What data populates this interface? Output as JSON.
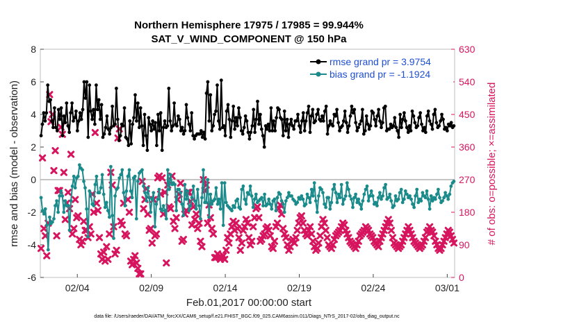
{
  "chart_data": {
    "type": "line",
    "title": "Northern Hemisphere 17975 / 17985 = 99.944%",
    "subtitle": "SAT_V_WIND_COMPONENT @ 150 hPa",
    "xlabel": "Feb.01,2017 00:00:00 start",
    "ylabel": "rmse and bias (model - observation)",
    "y2label": "# of obs: o=possible; ×=assimilated",
    "footnote": "data file: /Users/raeder/DAI/ATM_forcXX/CAM6_setup/f.e21.FHIST_BGC.f09_025.CAM6assim.011/Diags_NTrS_2017-02/obs_diag_output.nc",
    "x_tick_labels": [
      "02/04",
      "02/09",
      "02/14",
      "02/19",
      "02/24",
      "03/01"
    ],
    "x_tick_values": [
      4,
      9,
      14,
      19,
      24,
      29
    ],
    "x_range": [
      1.5,
      29.5
    ],
    "y_ticks": [
      "-6",
      "-4",
      "-2",
      "0",
      "2",
      "4",
      "6",
      "8"
    ],
    "y_range": [
      -6,
      8
    ],
    "y2_ticks": [
      "0",
      "90",
      "180",
      "270",
      "360",
      "450",
      "540",
      "630"
    ],
    "y2_range": [
      0,
      630
    ],
    "zero_line": 0,
    "colors": {
      "rmse": "#000000",
      "bias": "#1a8a8a",
      "obs": "#d6155e",
      "legend_text": "#1f4fd0"
    },
    "series": [
      {
        "name": "rmse grand pr = 3.9754",
        "values": [
          2.7,
          3.4,
          4.1,
          3.6,
          4.1,
          5.8,
          4.8,
          4.9,
          3.6,
          3.2,
          4.4,
          3.2,
          3.0,
          4.3,
          3.7,
          4.4,
          2.7,
          3.9,
          3.5,
          4.7,
          3.3,
          2.9,
          4.1,
          4.7,
          3.6,
          3.8,
          4.2,
          3.0,
          3.6,
          4.1,
          3.7,
          4.3,
          6.0,
          5.0,
          6.0,
          2.6,
          5.8,
          4.2,
          3.7,
          4.3,
          3.4,
          5.8,
          4.3,
          4.9,
          3.7,
          4.6,
          2.6,
          2.8,
          3.2,
          3.9,
          3.1,
          2.8,
          3.2,
          4.5,
          3.3,
          3.4,
          5.6,
          3.7,
          2.4,
          2.7,
          3.4,
          3.3,
          4.4,
          2.6,
          2.5,
          2.1,
          3.6,
          2.2,
          3.4,
          3.8,
          5.2,
          3.6,
          4.7,
          3.2,
          4.4,
          3.3,
          2.1,
          4.0,
          2.7,
          1.8,
          3.8,
          3.4,
          3.0,
          3.6,
          3.1,
          3.5,
          2.1,
          4.0,
          3.0,
          4.1,
          1.8,
          3.2,
          3.6,
          3.2,
          3.3,
          5.6,
          3.6,
          3.0,
          3.3,
          4.7,
          3.4,
          3.3,
          3.9,
          3.7,
          3.0,
          3.2,
          2.8,
          3.0,
          4.6,
          3.8,
          3.4,
          3.0,
          4.1,
          2.7,
          2.5,
          2.7,
          2.8,
          2.8,
          2.8,
          3.0,
          2.6,
          2.9,
          2.5,
          5.3,
          6.0,
          3.6,
          5.2,
          3.0,
          3.3,
          4.0,
          4.2,
          5.8,
          3.6,
          3.1,
          6.1,
          3.2,
          3.3,
          2.7,
          4.2,
          4.6,
          3.7,
          2.6,
          3.6,
          4.5,
          3.1,
          3.8,
          3.3,
          4.4,
          3.8,
          3.0,
          2.8,
          3.2,
          3.9,
          3.6,
          2.9,
          2.5,
          2.9,
          3.3,
          4.3,
          2.9,
          3.7,
          4.8,
          3.4,
          4.0,
          3.1,
          2.7,
          2.0,
          3.3,
          3.1,
          3.4,
          3.0,
          4.4,
          3.0,
          3.6,
          3.0,
          3.8,
          4.4,
          4.3,
          3.8,
          3.7,
          2.7,
          4.2,
          3.0,
          3.7,
          2.6,
          3.4,
          3.7,
          3.3,
          3.1,
          3.6,
          3.6,
          4.0,
          3.3,
          2.9,
          3.6,
          4.1,
          3.0,
          3.6,
          4.1,
          4.5,
          2.9,
          3.9,
          4.3,
          3.5,
          3.6,
          4.0,
          4.3,
          3.7,
          3.6,
          3.9,
          3.6,
          4.2,
          4.5,
          2.8,
          3.3,
          3.6,
          3.4,
          3.3,
          4.0,
          3.9,
          4.3,
          3.5,
          3.0,
          3.2,
          3.3,
          3.6,
          4.2,
          3.5,
          2.9,
          3.3,
          3.9,
          4.5,
          4.1,
          4.3,
          3.5,
          3.0,
          3.2,
          3.4,
          3.6,
          4.3,
          2.8,
          3.0,
          3.9,
          3.4,
          3.1,
          3.3,
          4.2,
          4.1,
          3.7,
          3.3,
          3.9,
          4.3,
          3.6,
          3.2,
          3.5,
          4.4,
          4.5,
          3.0,
          3.1,
          3.1,
          3.4,
          3.2,
          3.3,
          3.8,
          3.2,
          3.0,
          2.6,
          4.0,
          3.2,
          3.7,
          4.1,
          3.6,
          3.2,
          2.9,
          3.3,
          3.0,
          4.2,
          3.9,
          3.5,
          3.2,
          3.3,
          3.8,
          4.1,
          3.4,
          3.0,
          3.2,
          2.9,
          3.9,
          4.2,
          3.6,
          3.4,
          3.1,
          4.0,
          4.3,
          3.5,
          3.2,
          3.3,
          3.6,
          4.0,
          3.7,
          3.1,
          3.2,
          3.0,
          3.4,
          3.3,
          3.5,
          3.2,
          3.3
        ]
      },
      {
        "name": "bias grand pr = -1.1924",
        "values": [
          -1.1,
          -1.9,
          -2.1,
          -1.8,
          -2.8,
          -4.3,
          -2.3,
          -2.7,
          -2.6,
          -2.4,
          -1.6,
          -1.3,
          -2.0,
          -1.0,
          -0.7,
          -1.0,
          -2.0,
          -1.3,
          -1.6,
          -1.6,
          -3.1,
          -1.3,
          -0.4,
          0.2,
          -0.5,
          0.1,
          0.2,
          0.9,
          0.7,
          0.6,
          -0.1,
          -0.5,
          -1.8,
          -3.5,
          -0.7,
          -0.9,
          -1.5,
          -1.6,
          -0.3,
          0.2,
          -0.8,
          -0.8,
          -0.5,
          0.3,
          -0.9,
          -1.7,
          -1.4,
          -1.9,
          -2.3,
          0.8,
          -2.2,
          -3.6,
          -1.0,
          -0.6,
          -0.5,
          0.1,
          0.3,
          0.6,
          -0.8,
          -1.6,
          -0.7,
          0.2,
          0.6,
          -0.7,
          -1.1,
          0.1,
          0.2,
          -2.4,
          -0.1,
          0.4,
          0.5,
          0.6,
          -0.4,
          -0.8,
          -1.3,
          -0.5,
          -1.1,
          -2.0,
          -1.2,
          -0.8,
          -2.9,
          -1.5,
          -1.2,
          -0.6,
          -1.8,
          -1.9,
          -1.6,
          -1.9,
          -2.4,
          0.6,
          -0.6,
          0.3,
          -0.3,
          -0.2,
          -0.3,
          -1.9,
          -0.6,
          -0.6,
          -0.8,
          -1.5,
          -2.2,
          -0.3,
          -1.2,
          -0.7,
          -1.9,
          -1.6,
          -1.1,
          -0.4,
          -1.3,
          -1.8,
          -0.6,
          -1.6,
          -2.4,
          -1.1,
          0.6,
          -1.4,
          -1.4,
          0.0,
          -2.3,
          -0.9,
          -1.5,
          -1.3,
          -1.2,
          -0.5,
          -1.5,
          -1.2,
          -1.8,
          -0.2,
          -2.8,
          -0.2,
          -1.4,
          -1.6,
          -1.7,
          -1.8,
          -1.9,
          -1.6,
          -1.7,
          -1.3,
          -1.2,
          -1.7,
          -1.8,
          -0.6,
          -0.4,
          -1.2,
          -1.5,
          -0.8,
          -0.9,
          -0.4,
          -1.0,
          -1.7,
          -1.2,
          -0.9,
          -1.4,
          -1.3,
          -1.2,
          -1.1,
          -1.6,
          -0.9,
          -1.6,
          -1.5,
          -1.2,
          -1.5,
          -1.8,
          -1.3,
          -1.2,
          -1.9,
          -1.1,
          -0.8,
          -0.9,
          -1.3,
          -1.5,
          -2.0,
          -1.3,
          -1.1,
          -0.8,
          -1.0,
          -1.0,
          -1.2,
          -1.3,
          -1.5,
          -1.4,
          -1.1,
          -1.2,
          -1.0,
          -1.2,
          -1.6,
          -1.5,
          -0.9,
          -1.1,
          -1.4,
          -0.6,
          -1.0,
          -0.2,
          -1.3,
          -2.0,
          -1.0,
          -0.5,
          -0.6,
          -0.8,
          -1.5,
          -1.7,
          -1.1,
          -1.1,
          -1.8,
          -1.4,
          -0.6,
          -0.3,
          -0.8,
          -1.4,
          -0.9,
          -1.1,
          -0.3,
          -1.5,
          -1.2,
          -1.0,
          -0.2,
          -0.6,
          -1.0,
          -1.2,
          -1.7,
          -1.1,
          -0.9,
          -1.4,
          -1.2,
          -1.5,
          -1.8,
          -1.3,
          -0.9,
          -0.6,
          -0.4,
          -1.3,
          -1.0,
          -0.7,
          -1.0,
          -1.5,
          -1.4,
          -1.6,
          -1.1,
          -0.8,
          -1.2,
          -1.0,
          -0.5,
          -0.3,
          -1.2,
          -1.1,
          -0.9,
          -1.3,
          -1.7,
          -1.6,
          -1.0,
          -1.3,
          -1.2,
          -0.8,
          -0.6,
          -1.4,
          -1.2,
          -0.7,
          -0.9,
          -1.1,
          -1.0,
          -1.2,
          -1.5,
          -1.7,
          -1.0,
          -0.6,
          -1.4,
          -1.2,
          -1.3,
          -0.8,
          -1.0,
          -1.1,
          -0.7,
          -1.2,
          -1.8,
          -1.0,
          -1.3,
          -1.1,
          -1.2,
          -0.9,
          -0.6,
          -1.1,
          -1.4,
          -1.3,
          -1.1,
          -0.8,
          -1.0,
          -1.2,
          -0.9,
          -0.4,
          -0.2,
          -0.1
        ]
      }
    ],
    "obs_assimilated": [
      80,
      330,
      135,
      115,
      60,
      150,
      505,
      430,
      450,
      295,
      350,
      115,
      240,
      240,
      415,
      395,
      290,
      160,
      205,
      235,
      190,
      340,
      120,
      135,
      215,
      165,
      170,
      105,
      90,
      100,
      155,
      130,
      130,
      110,
      140,
      120,
      230,
      180,
      400,
      205,
      185,
      110,
      65,
      50,
      70,
      45,
      85,
      50,
      120,
      290,
      255,
      140,
      65,
      75,
      385,
      410,
      155,
      145,
      205,
      120,
      115,
      215,
      180,
      45,
      35,
      50,
      60,
      40,
      25,
      10,
      10,
      265,
      190,
      215,
      245,
      175,
      130,
      135,
      95,
      215,
      115,
      120,
      275,
      280,
      230,
      275,
      175,
      235,
      40,
      255,
      195,
      190,
      280,
      155,
      135,
      165,
      215,
      230,
      260,
      100,
      105,
      175,
      185,
      235,
      235,
      210,
      145,
      195,
      160,
      175,
      135,
      150,
      100,
      85,
      270,
      240,
      255,
      150,
      200,
      165,
      135,
      120,
      55,
      55,
      65,
      55,
      50,
      55,
      60,
      50,
      75,
      110,
      95,
      120,
      140,
      155,
      130,
      150,
      135,
      110,
      75,
      95,
      130,
      140,
      160,
      150,
      110,
      90,
      100,
      140,
      165,
      190,
      195,
      165,
      100,
      105,
      115,
      120,
      135,
      140,
      130,
      115,
      85,
      80,
      100,
      140,
      150,
      190,
      200,
      175,
      135,
      120,
      110,
      90,
      75,
      85,
      100,
      105,
      95,
      110,
      130,
      150,
      165,
      170,
      150,
      130,
      120,
      115,
      130,
      140,
      120,
      100,
      85,
      75,
      80,
      95,
      115,
      140,
      160,
      150,
      130,
      110,
      90,
      85,
      80,
      90,
      105,
      115,
      120,
      125,
      130,
      140,
      150,
      145,
      130,
      120,
      110,
      100,
      95,
      90,
      85,
      80,
      90,
      100,
      115,
      120,
      125,
      130,
      140,
      135,
      130,
      120,
      115,
      110,
      100,
      95,
      90,
      85,
      100,
      110,
      120,
      130,
      140,
      150,
      160,
      150,
      130,
      110,
      95,
      90,
      85,
      80,
      85,
      90,
      100,
      110,
      120,
      130,
      140,
      130,
      120,
      110,
      100,
      95,
      90,
      85,
      80,
      85,
      90,
      100,
      110,
      125,
      130,
      140,
      130,
      125,
      115,
      100,
      90,
      80,
      75,
      80,
      90,
      100,
      110,
      120,
      130,
      125,
      115,
      105,
      95
    ]
  }
}
